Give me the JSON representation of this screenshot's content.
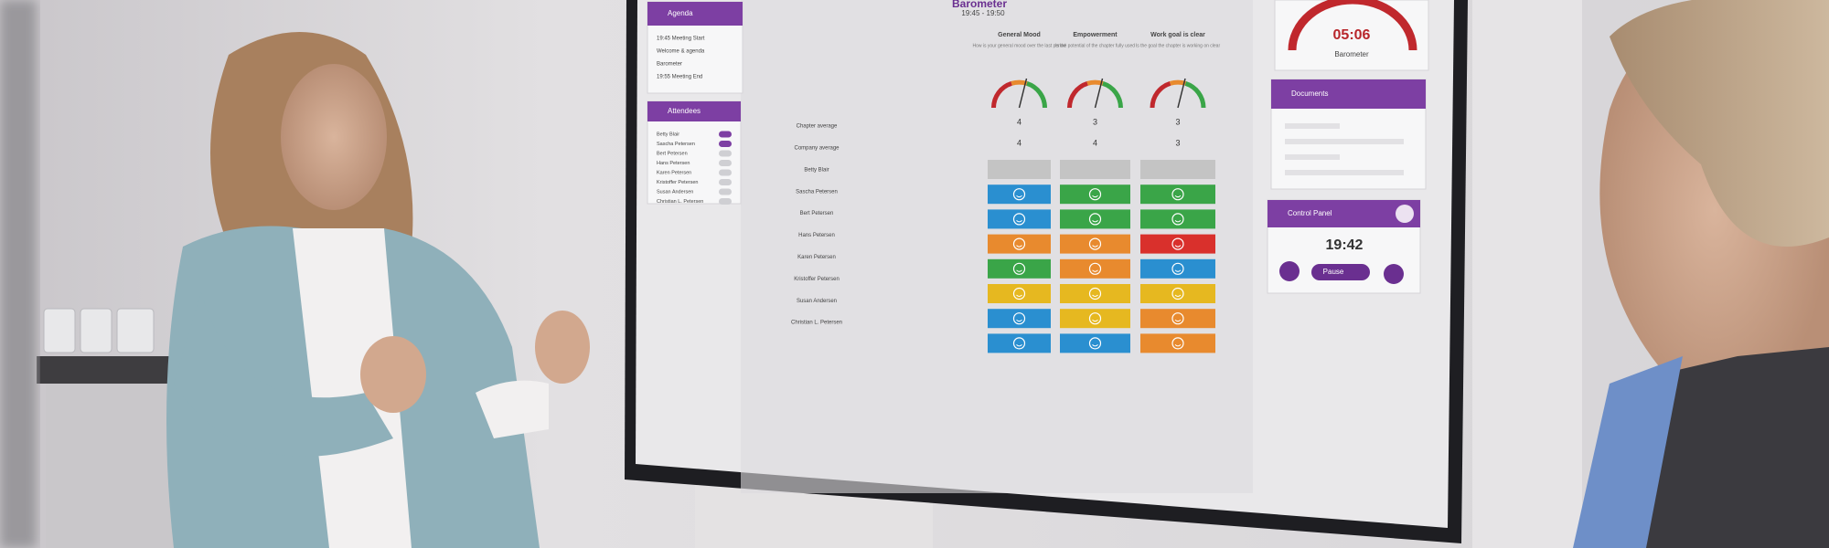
{
  "screen": {
    "agenda": {
      "title": "Agenda",
      "items": [
        "19:45 Meeting Start",
        "Welcome & agenda",
        "Barometer",
        "19:55 Meeting End"
      ]
    },
    "attendees": {
      "title": "Attendees",
      "names": [
        "Betty Blair",
        "Sascha Petersen",
        "Bert Petersen",
        "Hans Petersen",
        "Karen Petersen",
        "Kristoffer Petersen",
        "Susan Andersen",
        "Christian L. Petersen"
      ]
    },
    "barometer": {
      "title": "Barometer",
      "time": "19:45 - 19:50",
      "row_labels": [
        "Chapter average",
        "Company average",
        "Betty Blair",
        "Sascha Petersen",
        "Bert Petersen",
        "Hans Petersen",
        "Karen Petersen",
        "Kristoffer Petersen",
        "Susan Andersen",
        "Christian L. Petersen"
      ],
      "questions": [
        {
          "title": "General Mood",
          "description": "How is your general mood over the last period",
          "chapter_average": 4,
          "company_average": 4,
          "responses": [
            "#c4c4c4",
            "#2a8fd0",
            "#2a8fd0",
            "#e88a2e",
            "#3aa548",
            "#e6b820",
            "#2a8fd0",
            "#2a8fd0"
          ]
        },
        {
          "title": "Empowerment",
          "description": "Is the potential of the chapter fully used",
          "chapter_average": 3,
          "company_average": 4,
          "responses": [
            "#c4c4c4",
            "#3aa548",
            "#3aa548",
            "#e88a2e",
            "#e88a2e",
            "#e6b820",
            "#e6b820",
            "#2a8fd0"
          ]
        },
        {
          "title": "Work goal is clear",
          "description": "Is the goal the chapter is working on clear",
          "chapter_average": 3,
          "company_average": 3,
          "responses": [
            "#c4c4c4",
            "#3aa548",
            "#3aa548",
            "#d9302c",
            "#2a8fd0",
            "#e6b820",
            "#e88a2e",
            "#e88a2e"
          ]
        }
      ]
    },
    "timer": {
      "time": "05:06",
      "label": "Barometer"
    },
    "documents": {
      "title": "Documents"
    },
    "control_panel": {
      "title": "Control Panel",
      "time": "19:42",
      "pause": "Pause"
    }
  }
}
